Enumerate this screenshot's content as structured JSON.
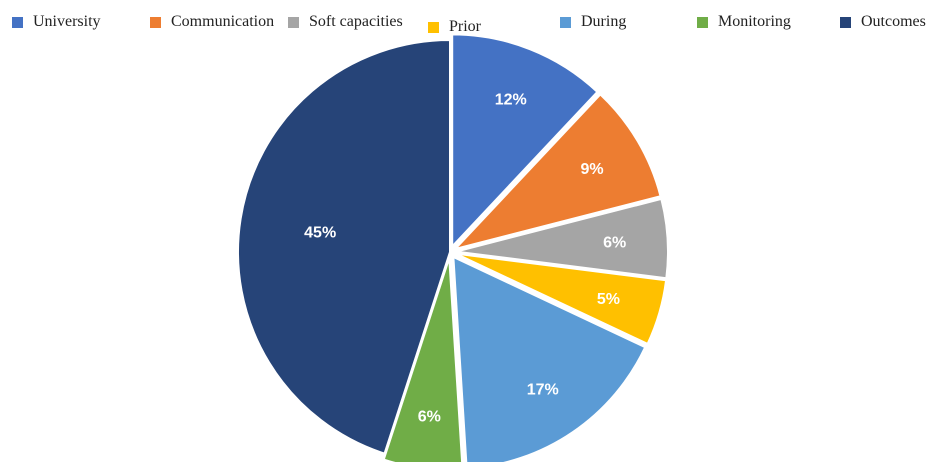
{
  "chart_data": {
    "type": "pie",
    "title": "",
    "categories": [
      "University",
      "Communication",
      "Soft capacities",
      "Prior",
      "During",
      "Monitoring",
      "Outcomes"
    ],
    "values": [
      12,
      9,
      6,
      5,
      17,
      6,
      45
    ],
    "labels": [
      "12%",
      "9%",
      "6%",
      "5%",
      "17%",
      "6%",
      "45%"
    ],
    "colors": [
      "#4472C4",
      "#ED7D31",
      "#A5A5A5",
      "#FFC000",
      "#5B9BD5",
      "#70AD47",
      "#264478"
    ],
    "start_angle_deg": 0,
    "direction": "clockwise",
    "legend_position": "top"
  }
}
